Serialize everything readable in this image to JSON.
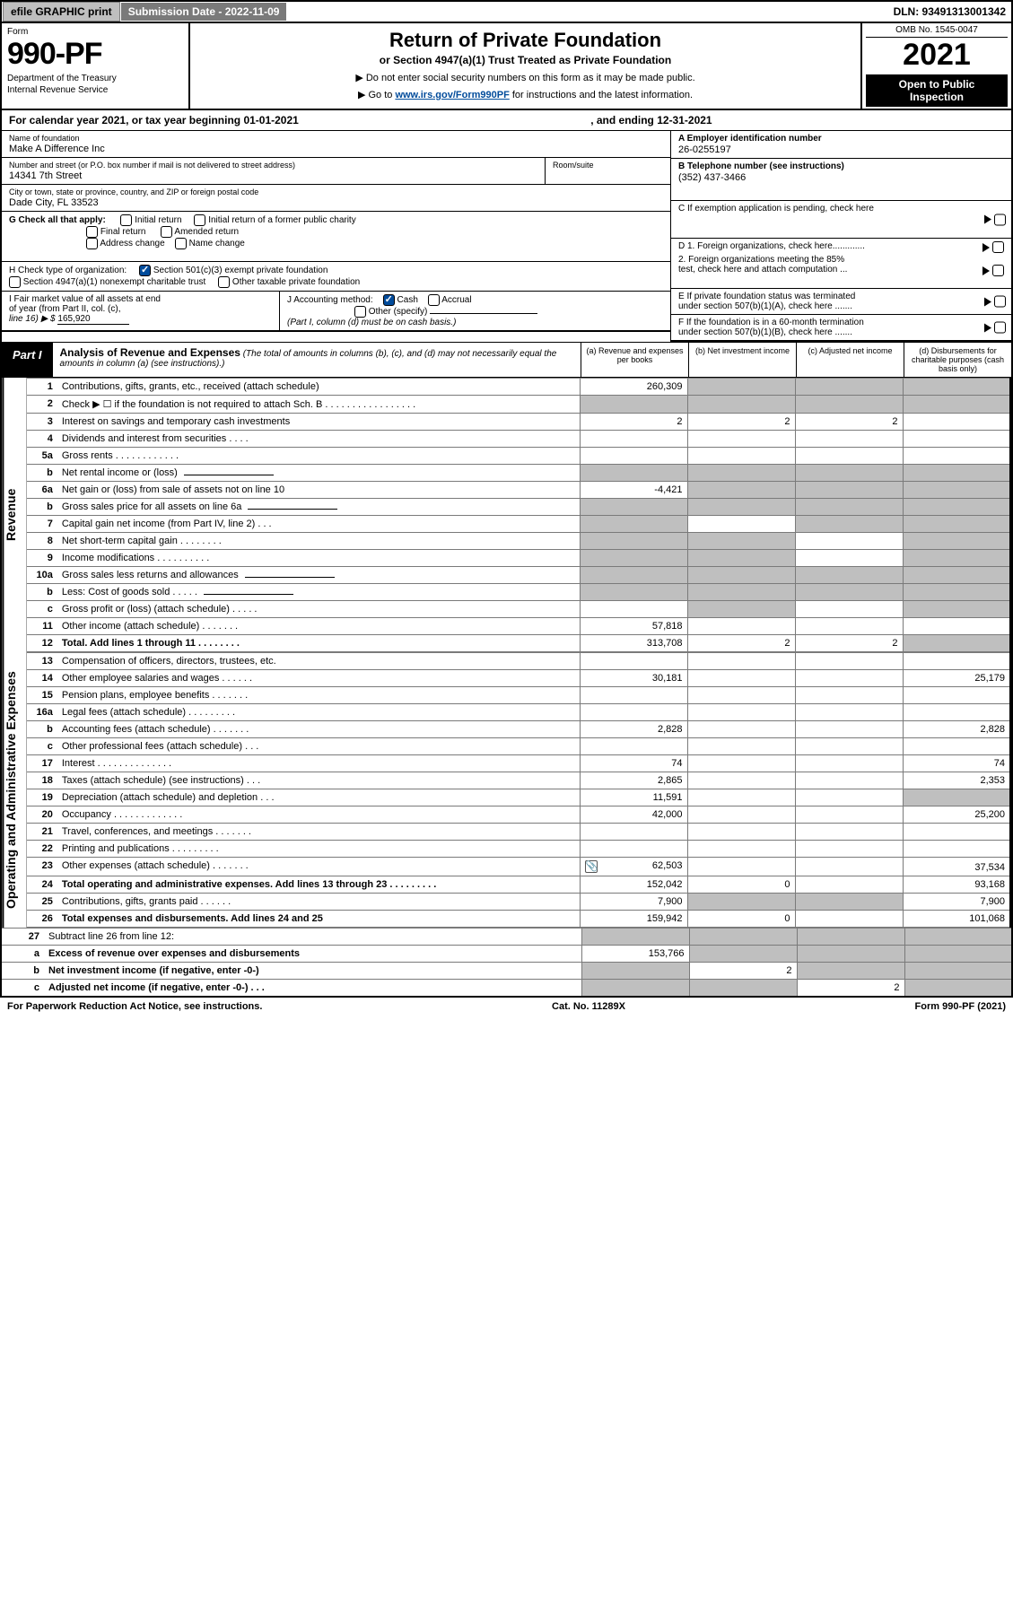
{
  "topbar": {
    "efile": "efile GRAPHIC print",
    "sub_date_label": "Submission Date - 2022-11-09",
    "dln": "DLN: 93491313001342"
  },
  "header": {
    "form_label": "Form",
    "form_num": "990-PF",
    "dept1": "Department of the Treasury",
    "dept2": "Internal Revenue Service",
    "title": "Return of Private Foundation",
    "subtitle": "or Section 4947(a)(1) Trust Treated as Private Foundation",
    "instr1": "▶ Do not enter social security numbers on this form as it may be made public.",
    "instr2": "▶ Go to ",
    "instr2_link": "www.irs.gov/Form990PF",
    "instr2_tail": " for instructions and the latest information.",
    "omb": "OMB No. 1545-0047",
    "year": "2021",
    "open1": "Open to Public",
    "open2": "Inspection"
  },
  "calyear": {
    "prefix": "For calendar year 2021, or tax year beginning 01-01-2021",
    "suffix": ", and ending 12-31-2021"
  },
  "name": {
    "label": "Name of foundation",
    "val": "Make A Difference Inc"
  },
  "addr": {
    "label": "Number and street (or P.O. box number if mail is not delivered to street address)",
    "room_label": "Room/suite",
    "val": "14341 7th Street"
  },
  "city": {
    "label": "City or town, state or province, country, and ZIP or foreign postal code",
    "val": "Dade City, FL  33523"
  },
  "ein": {
    "label": "A Employer identification number",
    "val": "26-0255197"
  },
  "phone": {
    "label": "B Telephone number (see instructions)",
    "val": "(352) 437-3466"
  },
  "boxC": "C If exemption application is pending, check here",
  "boxG": {
    "label": "G Check all that apply:",
    "o1": "Initial return",
    "o2": "Initial return of a former public charity",
    "o3": "Final return",
    "o4": "Amended return",
    "o5": "Address change",
    "o6": "Name change"
  },
  "boxD": {
    "d1": "D 1. Foreign organizations, check here.............",
    "d2a": "2. Foreign organizations meeting the 85%",
    "d2b": "test, check here and attach computation ..."
  },
  "boxH": {
    "label": "H Check type of organization:",
    "o1": "Section 501(c)(3) exempt private foundation",
    "o2": "Section 4947(a)(1) nonexempt charitable trust",
    "o3": "Other taxable private foundation"
  },
  "boxE": {
    "e1": "E If private foundation status was terminated",
    "e2": "under section 507(b)(1)(A), check here ......."
  },
  "boxI": {
    "l1": "I Fair market value of all assets at end",
    "l2": "of year (from Part II, col. (c),",
    "l3": "line 16) ▶ $",
    "val": "165,920"
  },
  "boxJ": {
    "label": "J Accounting method:",
    "o1": "Cash",
    "o2": "Accrual",
    "o3": "Other (specify)",
    "note": "(Part I, column (d) must be on cash basis.)"
  },
  "boxF": {
    "f1": "F If the foundation is in a 60-month termination",
    "f2": "under section 507(b)(1)(B), check here ......."
  },
  "part1": {
    "tag": "Part I",
    "title": "Analysis of Revenue and Expenses",
    "note": " (The total of amounts in columns (b), (c), and (d) may not necessarily equal the amounts in column (a) (see instructions).)",
    "colA": "(a)   Revenue and expenses per books",
    "colB": "(b)   Net investment income",
    "colC": "(c)   Adjusted net income",
    "colD": "(d)   Disbursements for charitable purposes (cash basis only)"
  },
  "sideRev": "Revenue",
  "sideExp": "Operating and Administrative Expenses",
  "rows": [
    {
      "n": "1",
      "d": "Contributions, gifts, grants, etc., received (attach schedule)",
      "a": "260,309",
      "shadeBCD": true
    },
    {
      "n": "2",
      "d": "Check ▶ ☐ if the foundation is not required to attach Sch. B   .  .  .  .  .  .  .  .  .  .  .  .  .  .  .  .  .",
      "shadeA": true,
      "shadeBCD": true
    },
    {
      "n": "3",
      "d": "Interest on savings and temporary cash investments",
      "a": "2",
      "b": "2",
      "c": "2"
    },
    {
      "n": "4",
      "d": "Dividends and interest from securities    .    .    .    ."
    },
    {
      "n": "5a",
      "d": "Gross rents    .    .    .    .    .    .    .    .    .    .    .    ."
    },
    {
      "n": "b",
      "d": "Net rental income or (loss)",
      "box": true,
      "shadeA": true,
      "shadeBCD": true
    },
    {
      "n": "6a",
      "d": "Net gain or (loss) from sale of assets not on line 10",
      "a": "-4,421",
      "shadeBCD": true
    },
    {
      "n": "b",
      "d": "Gross sales price for all assets on line 6a",
      "box": true,
      "shadeA": true,
      "shadeBCD": true
    },
    {
      "n": "7",
      "d": "Capital gain net income (from Part IV, line 2)    .    .    .",
      "shadeA": true,
      "shadeCD": true
    },
    {
      "n": "8",
      "d": "Net short-term capital gain  .    .    .    .    .    .    .    .",
      "shadeA": true,
      "shadeB": true,
      "shadeD": true
    },
    {
      "n": "9",
      "d": "Income modifications  .    .    .    .    .    .    .    .    .    .",
      "shadeA": true,
      "shadeB": true,
      "shadeD": true
    },
    {
      "n": "10a",
      "d": "Gross sales less returns and allowances",
      "box": true,
      "shadeA": true,
      "shadeBCD": true
    },
    {
      "n": "b",
      "d": "Less: Cost of goods sold    .    .    .    .    .",
      "box": true,
      "shadeA": true,
      "shadeBCD": true
    },
    {
      "n": "c",
      "d": "Gross profit or (loss) (attach schedule)    .    .    .    .    .",
      "shadeB": true,
      "shadeD": true
    },
    {
      "n": "11",
      "d": "Other income (attach schedule)    .    .    .    .    .    .    .",
      "a": "57,818"
    },
    {
      "n": "12",
      "d": "Total. Add lines 1 through 11    .    .    .    .    .    .    .    .",
      "bold": true,
      "a": "313,708",
      "b": "2",
      "c": "2",
      "shadeD": true
    }
  ],
  "exp_rows": [
    {
      "n": "13",
      "d": "Compensation of officers, directors, trustees, etc."
    },
    {
      "n": "14",
      "d": "Other employee salaries and wages    .    .    .    .    .    .",
      "a": "30,181",
      "dd": "25,179"
    },
    {
      "n": "15",
      "d": "Pension plans, employee benefits  .    .    .    .    .    .    ."
    },
    {
      "n": "16a",
      "d": "Legal fees (attach schedule)  .    .    .    .    .    .    .    .    ."
    },
    {
      "n": "b",
      "d": "Accounting fees (attach schedule)  .    .    .    .    .    .    .",
      "a": "2,828",
      "dd": "2,828"
    },
    {
      "n": "c",
      "d": "Other professional fees (attach schedule)    .    .    ."
    },
    {
      "n": "17",
      "d": "Interest  .    .    .    .    .    .    .    .    .    .    .    .    .    .",
      "a": "74",
      "dd": "74"
    },
    {
      "n": "18",
      "d": "Taxes (attach schedule) (see instructions)    .    .    .",
      "a": "2,865",
      "dd": "2,353"
    },
    {
      "n": "19",
      "d": "Depreciation (attach schedule) and depletion    .    .    .",
      "a": "11,591",
      "shadeD": true
    },
    {
      "n": "20",
      "d": "Occupancy  .    .    .    .    .    .    .    .    .    .    .    .    .",
      "a": "42,000",
      "dd": "25,200"
    },
    {
      "n": "21",
      "d": "Travel, conferences, and meetings  .    .    .    .    .    .    ."
    },
    {
      "n": "22",
      "d": "Printing and publications  .    .    .    .    .    .    .    .    ."
    },
    {
      "n": "23",
      "d": "Other expenses (attach schedule)  .    .    .    .    .    .    .",
      "a": "62,503",
      "dd": "37,534",
      "attach": true
    },
    {
      "n": "24",
      "d": "Total operating and administrative expenses. Add lines 13 through 23    .    .    .    .    .    .    .    .    .",
      "bold": true,
      "a": "152,042",
      "b": "0",
      "dd": "93,168"
    },
    {
      "n": "25",
      "d": "Contributions, gifts, grants paid    .    .    .    .    .    .",
      "a": "7,900",
      "shadeBC": true,
      "dd": "7,900"
    },
    {
      "n": "26",
      "d": "Total expenses and disbursements. Add lines 24 and 25",
      "bold": true,
      "a": "159,942",
      "b": "0",
      "dd": "101,068"
    }
  ],
  "final_rows": [
    {
      "n": "27",
      "d": "Subtract line 26 from line 12:",
      "shadeAll": true
    },
    {
      "n": "a",
      "d": "Excess of revenue over expenses and disbursements",
      "bold": true,
      "a": "153,766",
      "shadeBCD": true
    },
    {
      "n": "b",
      "d": "Net investment income (if negative, enter -0-)",
      "bold": true,
      "shadeA": true,
      "b": "2",
      "shadeCD": true
    },
    {
      "n": "c",
      "d": "Adjusted net income (if negative, enter -0-)    .    .    .",
      "bold": true,
      "shadeA": true,
      "shadeB": true,
      "c": "2",
      "shadeD": true
    }
  ],
  "footer": {
    "left": "For Paperwork Reduction Act Notice, see instructions.",
    "mid": "Cat. No. 11289X",
    "right": "Form 990-PF (2021)"
  }
}
